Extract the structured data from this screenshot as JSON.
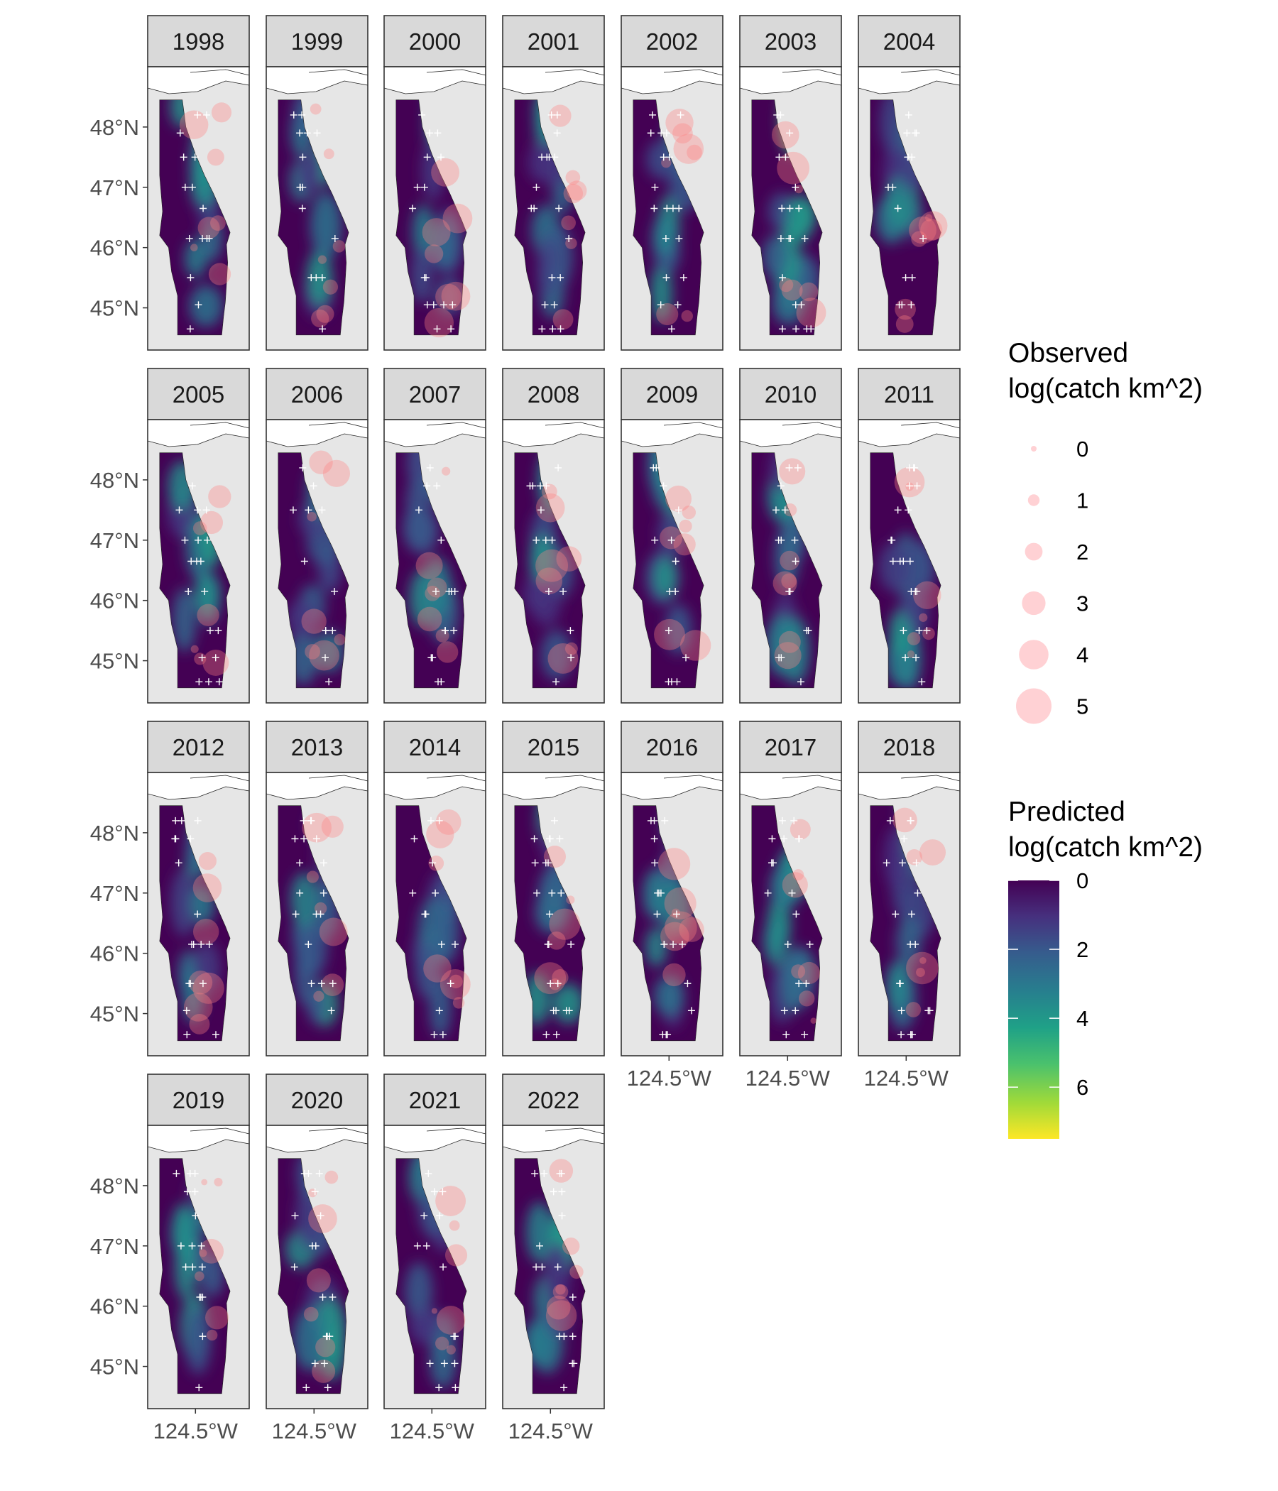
{
  "chart_data": {
    "type": "heatmap",
    "description_style": "faceted maps of the Washington/Oregon coast, one panel per year",
    "facets": [
      "1998",
      "1999",
      "2000",
      "2001",
      "2002",
      "2003",
      "2004",
      "2005",
      "2006",
      "2007",
      "2008",
      "2009",
      "2010",
      "2011",
      "2012",
      "2013",
      "2014",
      "2015",
      "2016",
      "2017",
      "2018",
      "2019",
      "2020",
      "2021",
      "2022"
    ],
    "y_axis": {
      "ticks": [
        48,
        47,
        46,
        45
      ],
      "tick_labels": [
        "48°N",
        "47°N",
        "46°N",
        "45°N"
      ],
      "range": [
        44.3,
        49.0
      ]
    },
    "x_axis": {
      "ticks": [
        -124.5
      ],
      "tick_labels": [
        "124.5°W"
      ],
      "range": [
        -125.3,
        -123.6
      ]
    },
    "legend_observed": {
      "title": [
        "Observed",
        "log(catch km^2)"
      ],
      "color": "#ffb3b8",
      "values": [
        0,
        1,
        2,
        3,
        4,
        5
      ],
      "labels": [
        "0",
        "1",
        "2",
        "3",
        "4",
        "5"
      ]
    },
    "legend_predicted": {
      "title": [
        "Predicted",
        "log(catch km^2)"
      ],
      "scale": "viridis",
      "range": [
        0,
        7.5
      ],
      "reversed": true,
      "ticks": [
        0,
        2,
        4,
        6
      ],
      "tick_labels": [
        "0",
        "2",
        "4",
        "6"
      ]
    },
    "colors": {
      "land": "#e6e6e6",
      "strip": "#d9d9d9",
      "ocean_low": "#440154",
      "observed_fill": "#ff8080",
      "station_marker": "#ffffff"
    }
  }
}
